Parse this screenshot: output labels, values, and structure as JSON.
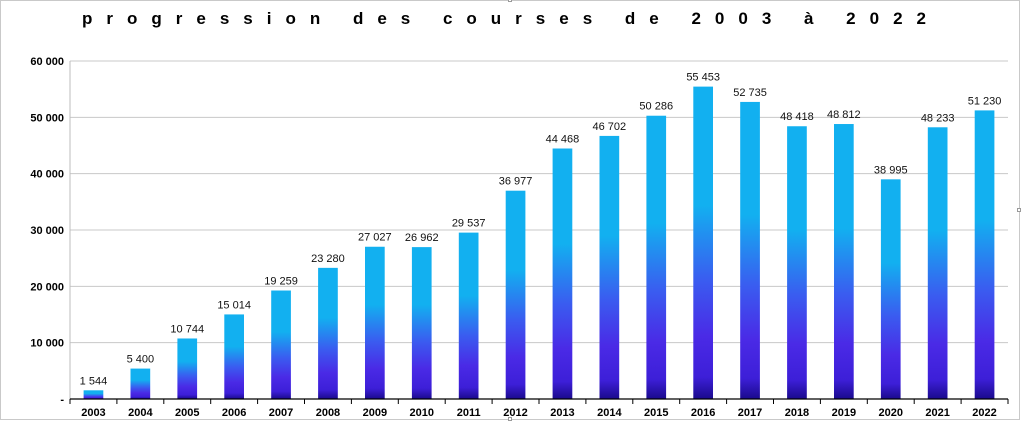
{
  "chart_data": {
    "type": "bar",
    "title": "progression des courses de 2003 à 2022",
    "xlabel": "",
    "ylabel": "",
    "categories": [
      "2003",
      "2004",
      "2005",
      "2006",
      "2007",
      "2008",
      "2009",
      "2010",
      "2011",
      "2012",
      "2013",
      "2014",
      "2015",
      "2016",
      "2017",
      "2018",
      "2019",
      "2020",
      "2021",
      "2022"
    ],
    "values": [
      1544,
      5400,
      10744,
      15014,
      19259,
      23280,
      27027,
      26962,
      29537,
      36977,
      44468,
      46702,
      50286,
      55453,
      52735,
      48418,
      48812,
      38995,
      48233,
      51230
    ],
    "value_labels": [
      "1 544",
      "5 400",
      "10 744",
      "15 014",
      "19 259",
      "23 280",
      "27 027",
      "26 962",
      "29 537",
      "36 977",
      "44 468",
      "46 702",
      "50 286",
      "55 453",
      "52 735",
      "48 418",
      "48 812",
      "38 995",
      "48 233",
      "51 230"
    ],
    "ylim": [
      0,
      60000
    ],
    "yticks": [
      0,
      10000,
      20000,
      30000,
      40000,
      50000,
      60000
    ],
    "ytick_labels": [
      "-",
      "10 000",
      "20 000",
      "30 000",
      "40 000",
      "50 000",
      "60 000"
    ],
    "grid": true,
    "legend": "none",
    "colors": {
      "bar_top": "#12b0f0",
      "bar_mid": "#4a2ae6",
      "bar_bottom": "#1a0a8c",
      "gridline": "#c8c8c8",
      "axis": "#000000"
    }
  }
}
